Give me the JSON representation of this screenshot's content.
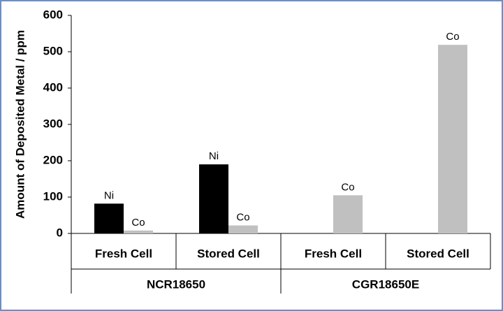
{
  "chart_data": {
    "type": "bar",
    "y_label": "Amount of Deposited Metal / ppm",
    "categories": [
      "Fresh Cell",
      "Stored Cell",
      "Fresh Cell",
      "Stored Cell"
    ],
    "groups": [
      "NCR18650",
      "CGR18650E"
    ],
    "series": [
      {
        "name": "Ni",
        "color": "#000000",
        "values": [
          82,
          190,
          null,
          null
        ]
      },
      {
        "name": "Co",
        "color": "#c0c0c0",
        "values": [
          8,
          22,
          105,
          519
        ]
      }
    ],
    "ylim": [
      0,
      600
    ],
    "yticks": [
      0,
      100,
      200,
      300,
      400,
      500,
      600
    ]
  }
}
